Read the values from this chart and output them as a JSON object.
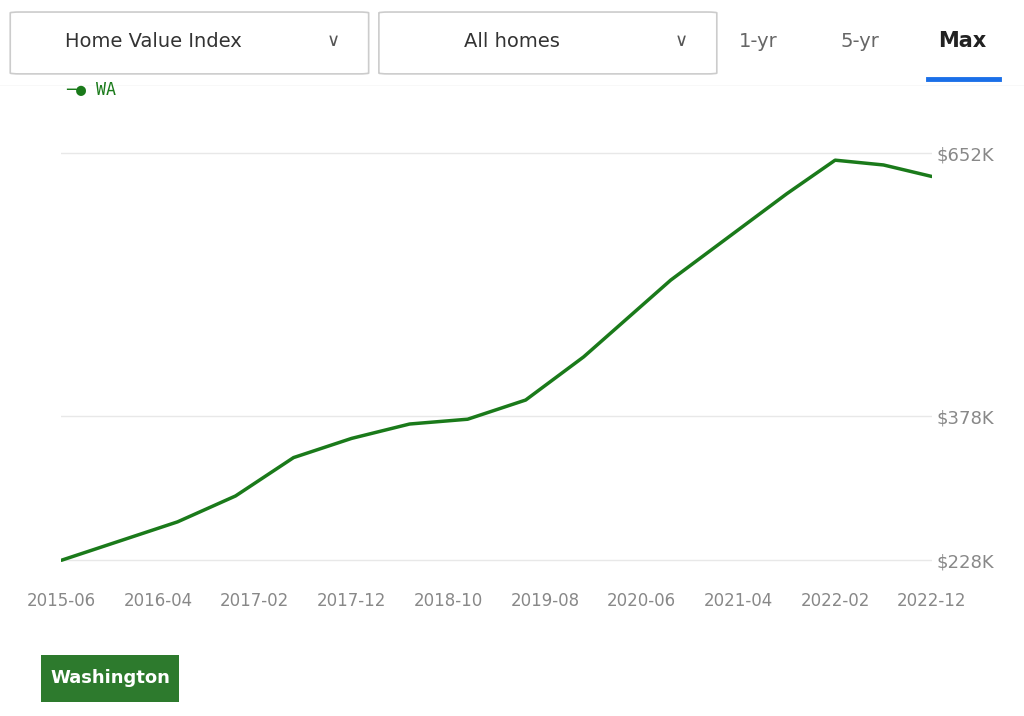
{
  "x_labels": [
    "2015-06",
    "2016-04",
    "2017-02",
    "2017-12",
    "2018-10",
    "2019-08",
    "2020-06",
    "2021-04",
    "2022-02",
    "2022-12"
  ],
  "x_values": [
    0,
    10,
    20,
    30,
    40,
    50,
    60,
    70,
    80,
    90
  ],
  "y_values": [
    228,
    248,
    268,
    295,
    335,
    355,
    370,
    375,
    395,
    440,
    520,
    610,
    645,
    640,
    628
  ],
  "x_data": [
    0,
    6,
    12,
    18,
    24,
    30,
    36,
    42,
    48,
    54,
    63,
    75,
    80,
    85,
    90
  ],
  "line_color": "#1a7a1a",
  "background_color": "#ffffff",
  "yticks": [
    228,
    378,
    652
  ],
  "ytick_labels": [
    "$228K",
    "$378K",
    "$652K"
  ],
  "ylim": [
    200,
    700
  ],
  "xlim": [
    0,
    90
  ],
  "wa_label_color": "#1a7a1a",
  "dropdown1_text": "Home Value Index",
  "dropdown2_text": "All homes",
  "btn1_text": "1-yr",
  "btn2_text": "5-yr",
  "btn3_text": "Max",
  "btn3_underline_color": "#1a6fe8",
  "washington_btn_text": "Washington",
  "washington_btn_bg": "#2d7a2d",
  "washington_btn_text_color": "#ffffff",
  "grid_color": "#e8e8e8",
  "axis_label_color": "#888888",
  "header_border_color": "#e0e0e0",
  "dropdown_border_color": "#cccccc"
}
